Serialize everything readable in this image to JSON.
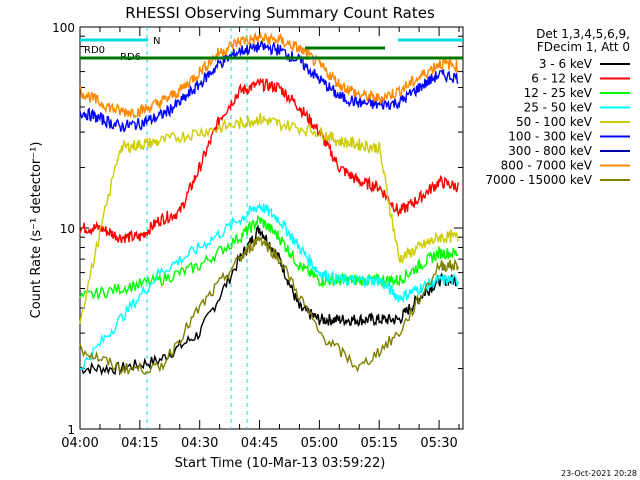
{
  "chart_data": {
    "type": "line",
    "title": "RHESSI Observing Summary Count Rates",
    "xlabel": "Start Time (10-Mar-13 03:59:22)",
    "ylabel": "Count Rate (s⁻¹ detector⁻¹)",
    "yscale": "log",
    "ylim": [
      1,
      100
    ],
    "xlim": [
      "04:00",
      "05:36"
    ],
    "x_ticks": [
      "04:00",
      "04:15",
      "04:30",
      "04:45",
      "05:00",
      "05:15",
      "05:30"
    ],
    "y_ticks": [
      "1",
      "10",
      "100"
    ],
    "legend_header": [
      "Det 1,3,4,5,6,9,",
      "FDecim 1, Att 0"
    ],
    "timestamp": "23-Oct-2021 20:28",
    "series": [
      {
        "name": "3 - 6 keV",
        "color": "#000000",
        "x": [
          "04:00",
          "04:10",
          "04:20",
          "04:30",
          "04:40",
          "04:45",
          "04:50",
          "04:55",
          "05:00",
          "05:05",
          "05:10",
          "05:15",
          "05:20",
          "05:25",
          "05:30",
          "05:35"
        ],
        "values": [
          2.0,
          2.0,
          2.2,
          3.0,
          7.0,
          10.0,
          7.0,
          4.0,
          3.5,
          3.5,
          3.5,
          3.5,
          3.5,
          4.5,
          5.5,
          5.5
        ]
      },
      {
        "name": "6 - 12 keV",
        "color": "#ff0000",
        "x": [
          "04:00",
          "04:05",
          "04:10",
          "04:15",
          "04:20",
          "04:25",
          "04:30",
          "04:35",
          "04:40",
          "04:45",
          "04:50",
          "04:55",
          "05:00",
          "05:05",
          "05:10",
          "05:15",
          "05:20",
          "05:25",
          "05:30",
          "05:35"
        ],
        "values": [
          10,
          10,
          9,
          9,
          11,
          12,
          20,
          35,
          48,
          52,
          50,
          40,
          30,
          20,
          17,
          16,
          12,
          14,
          17,
          16
        ]
      },
      {
        "name": "12 - 25 keV",
        "color": "#00ff00",
        "x": [
          "04:00",
          "04:10",
          "04:20",
          "04:30",
          "04:40",
          "04:45",
          "04:50",
          "04:55",
          "05:00",
          "05:05",
          "05:10",
          "05:15",
          "05:20",
          "05:25",
          "05:30",
          "05:35"
        ],
        "values": [
          4.5,
          5.0,
          5.5,
          6.5,
          9.0,
          11.0,
          9.0,
          6.5,
          5.5,
          5.5,
          5.5,
          5.5,
          5.5,
          6.5,
          7.5,
          7.5
        ]
      },
      {
        "name": "25 - 50 keV",
        "color": "#00ffff",
        "x": [
          "04:00",
          "04:10",
          "04:20",
          "04:30",
          "04:40",
          "04:45",
          "04:50",
          "04:55",
          "05:00",
          "05:05",
          "05:10",
          "05:15",
          "05:20",
          "05:25",
          "05:30",
          "05:35"
        ],
        "values": [
          2.0,
          3.5,
          6.0,
          8.0,
          11.0,
          13.0,
          11.0,
          8.0,
          6.0,
          5.5,
          5.5,
          5.5,
          4.5,
          5.0,
          5.5,
          5.5
        ]
      },
      {
        "name": "50 - 100 keV",
        "color": "#cccc00",
        "x": [
          "04:00",
          "04:10",
          "04:15",
          "04:20",
          "04:30",
          "04:40",
          "04:45",
          "04:50",
          "05:00",
          "05:05",
          "05:10",
          "05:15",
          "05:20",
          "05:25",
          "05:30",
          "05:35"
        ],
        "values": [
          3.5,
          25,
          26,
          27,
          30,
          33,
          35,
          33,
          30,
          27,
          26,
          25,
          7,
          8,
          9,
          9
        ]
      },
      {
        "name": "100 - 300 keV",
        "color": "#0000ff",
        "x": [
          "04:00",
          "04:05",
          "04:10",
          "04:15",
          "04:20",
          "04:25",
          "04:30",
          "04:35",
          "04:40",
          "04:45",
          "04:50",
          "04:55",
          "05:00",
          "05:05",
          "05:10",
          "05:15",
          "05:20",
          "05:25",
          "05:30",
          "05:35"
        ],
        "values": [
          38,
          35,
          32,
          33,
          36,
          42,
          52,
          66,
          76,
          80,
          77,
          68,
          55,
          45,
          42,
          41,
          42,
          50,
          58,
          56
        ]
      },
      {
        "name": "300 - 800 keV",
        "color": "#0000aa",
        "x": [
          "04:00",
          "04:35",
          "05:35"
        ],
        "values": [
          null,
          null,
          null
        ]
      },
      {
        "name": "800 - 7000 keV",
        "color": "#ff8800",
        "x": [
          "04:00",
          "04:05",
          "04:10",
          "04:15",
          "04:20",
          "04:25",
          "04:30",
          "04:35",
          "04:40",
          "04:45",
          "04:50",
          "04:55",
          "05:00",
          "05:05",
          "05:10",
          "05:15",
          "05:20",
          "05:25",
          "05:30",
          "05:35"
        ],
        "values": [
          48,
          42,
          38,
          38,
          42,
          48,
          60,
          75,
          85,
          88,
          86,
          78,
          65,
          52,
          46,
          44,
          48,
          56,
          66,
          64
        ]
      },
      {
        "name": "7000 - 15000 keV",
        "color": "#808000",
        "x": [
          "04:00",
          "04:10",
          "04:20",
          "04:30",
          "04:40",
          "04:45",
          "04:50",
          "05:00",
          "05:10",
          "05:20",
          "05:30",
          "05:35"
        ],
        "values": [
          2.5,
          2.0,
          2.0,
          4.0,
          7.0,
          9.0,
          7.0,
          3.0,
          2.0,
          3.0,
          6.5,
          6.5
        ]
      }
    ],
    "overlays": [
      {
        "label": "RD0",
        "color": "#007700"
      },
      {
        "label": "RD6",
        "color": "#007700"
      },
      {
        "label": "N",
        "color": "#00dddd"
      }
    ]
  }
}
